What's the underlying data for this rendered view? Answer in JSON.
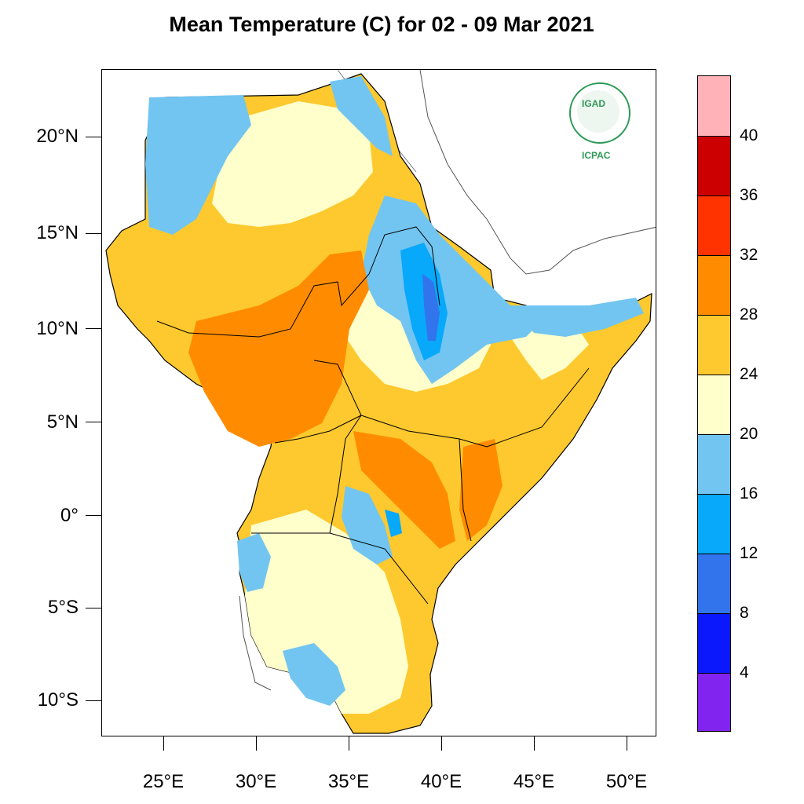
{
  "title": "Mean Temperature (C) for 02 - 09 Mar 2021",
  "logo": {
    "name": "IGAD",
    "subtitle": "ICPAC"
  },
  "axes": {
    "y_labels": [
      "20°N",
      "15°N",
      "10°N",
      "5°N",
      "0°",
      "5°S",
      "10°S"
    ],
    "x_labels": [
      "25°E",
      "30°E",
      "35°E",
      "40°E",
      "45°E",
      "50°E"
    ]
  },
  "colorbar": {
    "labels": [
      "40",
      "36",
      "32",
      "28",
      "24",
      "20",
      "16",
      "12",
      "8",
      "4"
    ],
    "colors": [
      "#ffb2b8",
      "#cc0000",
      "#ff3300",
      "#ff8c00",
      "#fdc92e",
      "#ffffcc",
      "#72c5f0",
      "#08a8fb",
      "#3274eb",
      "#0b18fb",
      "#8124f0"
    ]
  },
  "colors": {
    "cold_dark": "#3274eb",
    "cold": "#08a8fb",
    "cool": "#72c5f0",
    "mild": "#ffffcc",
    "warm": "#fdc92e",
    "hot": "#ff8c00",
    "border": "#000000"
  }
}
